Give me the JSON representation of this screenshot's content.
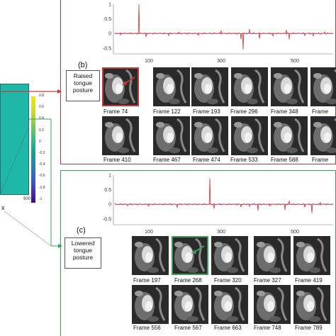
{
  "left": {
    "colorbar_ticks": [
      "0.8",
      "0.6",
      "0.4",
      "0.2",
      "0",
      "-0.2",
      "-0.4",
      "-0.6",
      "-0.8",
      "-1"
    ],
    "axis_tick_left": "",
    "axis_tick_right": "900",
    "xlabel": "x"
  },
  "panel_b": {
    "label": "(b)",
    "posture_line1": "Raised",
    "posture_line2": "tongue",
    "posture_line3": "posture",
    "plot_ticks_y": [
      "1",
      "0.5",
      "0",
      "-0.5"
    ],
    "plot_ticks_x": [
      "100",
      "300",
      "500"
    ],
    "frames_row1": [
      "Frame 74",
      "Frame 122",
      "Frame 193",
      "Frame 296",
      "Frame 348",
      "Frame"
    ],
    "frames_row2": [
      "Frame 410",
      "Frame 467",
      "Frame 474",
      "Frame 533",
      "Frame 588",
      "Frame"
    ]
  },
  "panel_c": {
    "label": "(c)",
    "posture_line1": "Lowered",
    "posture_line2": "tongue",
    "posture_line3": "posture",
    "plot_ticks_y": [
      "1",
      "0.5",
      "0",
      "-0.5"
    ],
    "plot_ticks_x": [
      "100",
      "300",
      "500"
    ],
    "frames_row1": [
      "Frame 197",
      "Frame 268",
      "Frame 320",
      "Frame 327",
      "Frame 419"
    ],
    "frames_row2": [
      "Frame 556",
      "Frame 567",
      "Frame 663",
      "Frame 748",
      "Frame 789"
    ]
  },
  "colors": {
    "red": "#c0393b",
    "green": "#3f9b5a",
    "signal_red": "#d9302f",
    "signal_blue": "#6a66d8"
  }
}
